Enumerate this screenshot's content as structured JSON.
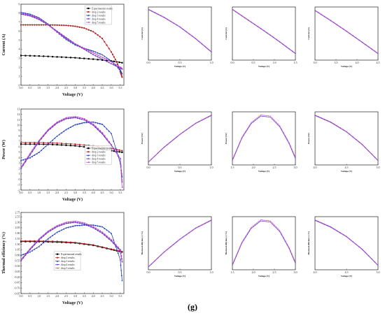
{
  "caption": "(g)",
  "series_styles": [
    {
      "color": "#000000",
      "marker": "square"
    },
    {
      "color": "#b22222",
      "marker": "circle"
    },
    {
      "color": "#1f3fc0",
      "marker": "triangle"
    },
    {
      "color": "#5a2fbf",
      "marker": "diamond"
    },
    {
      "color": "#c044c8",
      "marker": "triangle-left"
    }
  ],
  "chart_data": [
    {
      "type": "line",
      "xlabel": "Voltage (V)",
      "ylabel": "Current (A)",
      "xlim": [
        0,
        5.7
      ],
      "ylim": [
        0,
        9
      ],
      "xticks": [
        "0.0",
        "0.5",
        "1.0",
        "1.5",
        "2.0",
        "2.5",
        "3.0",
        "3.5",
        "4.0",
        "4.5",
        "5.0",
        "5.5"
      ],
      "yticks": [
        "0",
        "1",
        "2",
        "3",
        "4",
        "5",
        "6",
        "7",
        "8",
        "9"
      ],
      "legend": "top-right",
      "series": [
        {
          "name": "Experimental results",
          "x": [
            0,
            1,
            2,
            3,
            4,
            5,
            5.6
          ],
          "y": [
            3.3,
            3.25,
            3.15,
            3.05,
            2.9,
            2.7,
            2.5
          ]
        },
        {
          "name": "drop 2 results",
          "x": [
            0,
            0.5,
            1,
            1.5,
            2,
            2.5,
            3,
            3.5,
            4,
            4.5,
            5,
            5.3,
            5.5,
            5.6
          ],
          "y": [
            6.7,
            6.7,
            6.7,
            6.7,
            6.68,
            6.65,
            6.55,
            6.35,
            5.95,
            5.2,
            3.7,
            2.6,
            1.5,
            0.9
          ]
        },
        {
          "name": "drop 3 results",
          "x": [
            0,
            0.5,
            1,
            1.5,
            2,
            2.5,
            3,
            3.5,
            4,
            4.5,
            5,
            5.5,
            5.6
          ],
          "y": [
            8.1,
            7.9,
            7.5,
            6.8,
            5.9,
            5.1,
            4.5,
            4.1,
            3.8,
            3.4,
            2.7,
            1.7,
            1.3
          ]
        },
        {
          "name": "drop 4 results",
          "x": [
            0,
            0.5,
            1,
            1.5,
            2,
            2.5,
            3,
            3.5,
            4,
            4.5,
            5,
            5.5,
            5.6
          ],
          "y": [
            7.9,
            7.7,
            7.3,
            6.7,
            6.0,
            5.3,
            4.6,
            4.0,
            3.4,
            2.9,
            2.4,
            1.9,
            1.8
          ]
        },
        {
          "name": "drop 5 results",
          "x": [
            0,
            0.5,
            1,
            1.5,
            2,
            2.5,
            3,
            3.5,
            4,
            4.5,
            5,
            5.5,
            5.6
          ],
          "y": [
            8.0,
            7.8,
            7.4,
            6.7,
            5.9,
            5.2,
            4.6,
            4.1,
            3.6,
            3.1,
            2.6,
            2.0,
            1.8
          ]
        }
      ]
    },
    {
      "type": "line",
      "xlabel": "Voltage (V)",
      "ylabel": "Power (W)",
      "xlim": [
        0,
        5.7
      ],
      "ylim": [
        -2,
        13
      ],
      "xticks": [
        "0.0",
        "0.5",
        "1.0",
        "1.5",
        "2.0",
        "2.5",
        "3.0",
        "3.5",
        "4.0",
        "4.5",
        "5.0",
        "5.5"
      ],
      "yticks": [
        "-2",
        "-1",
        "0",
        "1",
        "2",
        "3",
        "4",
        "5",
        "6",
        "7",
        "8",
        "9",
        "10",
        "11",
        "12",
        "13"
      ],
      "legend": "bottom-right",
      "series": [
        {
          "name": "Experimental results",
          "x": [
            0,
            1,
            2,
            3,
            4,
            5,
            5.6
          ],
          "y": [
            6.5,
            6.5,
            6.4,
            6.2,
            5.8,
            5.3,
            5.0
          ]
        },
        {
          "name": "drop 2 results",
          "x": [
            0,
            1,
            2,
            3,
            4,
            5,
            5.6
          ],
          "y": [
            6.8,
            6.8,
            6.7,
            6.5,
            6.2,
            5.7,
            5.3
          ]
        },
        {
          "name": "drop 3 results",
          "x": [
            0,
            0.5,
            1,
            1.5,
            2,
            2.5,
            3,
            3.5,
            4,
            4.5,
            5,
            5.5,
            5.6
          ],
          "y": [
            3.5,
            4.0,
            5.0,
            6.5,
            8.0,
            9.2,
            10.1,
            10.5,
            10.6,
            10.2,
            8.5,
            3.0,
            0.5
          ]
        },
        {
          "name": "drop 4 results",
          "x": [
            0,
            0.5,
            1,
            1.5,
            2,
            2.5,
            3,
            3.5,
            4,
            4.5,
            5,
            5.5,
            5.6
          ],
          "y": [
            2.0,
            4.5,
            7.0,
            9.0,
            10.4,
            11.2,
            11.4,
            11.0,
            10.0,
            8.4,
            6.3,
            3.8,
            -0.5
          ]
        },
        {
          "name": "drop 5 results",
          "x": [
            0,
            0.5,
            1,
            1.5,
            2,
            2.5,
            3,
            3.5,
            4,
            4.5,
            5,
            5.5,
            5.6
          ],
          "y": [
            2.2,
            4.8,
            7.2,
            9.2,
            10.6,
            11.4,
            11.6,
            11.2,
            10.2,
            8.6,
            6.4,
            3.8,
            -1.5
          ]
        }
      ]
    },
    {
      "type": "line",
      "xlabel": "Voltage (V)",
      "ylabel": "Thermal efficiency (%)",
      "xlim": [
        0,
        5.7
      ],
      "ylim": [
        -0.95,
        2.75
      ],
      "xticks": [
        "0.0",
        "0.5",
        "1.0",
        "1.5",
        "2.0",
        "2.5",
        "3.0",
        "3.5",
        "4.0",
        "4.5",
        "5.0",
        "5.5"
      ],
      "yticks": [
        "-0.95",
        "-0.70",
        "-0.45",
        "-0.20",
        "0.05",
        "0.30",
        "0.55",
        "0.80",
        "1.05",
        "1.30",
        "1.55",
        "1.80",
        "2.05",
        "2.30",
        "2.55",
        "2.75"
      ],
      "legend": "bottom-left",
      "series": [
        {
          "name": "Experimental results",
          "x": [
            0,
            1,
            2,
            3,
            4,
            5,
            5.6
          ],
          "y": [
            1.42,
            1.42,
            1.4,
            1.36,
            1.25,
            1.06,
            0.95
          ]
        },
        {
          "name": "drop 2 results",
          "x": [
            0,
            1,
            2,
            3,
            4,
            5,
            5.6
          ],
          "y": [
            1.45,
            1.45,
            1.43,
            1.38,
            1.27,
            1.08,
            0.97
          ]
        },
        {
          "name": "drop 3 results",
          "x": [
            0,
            0.5,
            1,
            1.5,
            2,
            2.5,
            3,
            3.5,
            4,
            4.5,
            5,
            5.5,
            5.6
          ],
          "y": [
            0.8,
            0.95,
            1.2,
            1.55,
            1.85,
            2.05,
            2.15,
            2.18,
            2.18,
            2.1,
            1.8,
            0.6,
            -0.35
          ]
        },
        {
          "name": "drop 4 results",
          "x": [
            0,
            0.5,
            1,
            1.5,
            2,
            2.5,
            3,
            3.5,
            4,
            4.5,
            5,
            5.5,
            5.6
          ],
          "y": [
            0.55,
            1.05,
            1.5,
            1.85,
            2.1,
            2.25,
            2.3,
            2.22,
            2.05,
            1.8,
            1.45,
            1.0,
            0.5
          ]
        },
        {
          "name": "drop 5 results",
          "x": [
            0,
            0.5,
            1,
            1.5,
            2,
            2.5,
            3,
            3.5,
            4,
            4.5,
            5,
            5.5,
            5.6
          ],
          "y": [
            0.6,
            1.1,
            1.55,
            1.9,
            2.15,
            2.3,
            2.35,
            2.27,
            2.1,
            1.85,
            1.5,
            1.05,
            0.5
          ]
        }
      ]
    },
    {
      "type": "line",
      "xlabel": "Voltage (V)",
      "ylabel": "Current (A)",
      "xlim": [
        0,
        1
      ],
      "ylim": [
        0,
        1
      ],
      "xticks": [
        "0.0",
        "0.5",
        "1.0"
      ],
      "yticks": [],
      "series": [
        {
          "name": "",
          "x": [
            0,
            0.25,
            0.5,
            0.75,
            1
          ],
          "y": [
            0.95,
            0.8,
            0.62,
            0.4,
            0.15
          ]
        },
        {
          "name": "",
          "x": [
            0,
            0.25,
            0.5,
            0.75,
            1
          ],
          "y": [
            0.96,
            0.81,
            0.63,
            0.41,
            0.16
          ]
        }
      ]
    },
    {
      "type": "line",
      "xlabel": "Voltage (V)",
      "ylabel": "Current (A)",
      "xlim": [
        0,
        1
      ],
      "ylim": [
        0,
        1
      ],
      "xticks": [
        "0.0",
        "0.5",
        "1.0",
        "1.5"
      ],
      "yticks": [],
      "series": [
        {
          "name": "",
          "x": [
            0,
            0.25,
            0.5,
            0.75,
            1
          ],
          "y": [
            0.95,
            0.75,
            0.55,
            0.34,
            0.12
          ]
        },
        {
          "name": "",
          "x": [
            0,
            0.25,
            0.5,
            0.75,
            1
          ],
          "y": [
            0.96,
            0.76,
            0.56,
            0.35,
            0.13
          ]
        }
      ]
    },
    {
      "type": "line",
      "xlabel": "Voltage (V)",
      "ylabel": "Current (A)",
      "xlim": [
        0,
        1
      ],
      "ylim": [
        0,
        1
      ],
      "xticks": [
        "3.0",
        "3.5",
        "4.0",
        "4.5"
      ],
      "yticks": [],
      "series": [
        {
          "name": "",
          "x": [
            0,
            0.25,
            0.5,
            0.75,
            1
          ],
          "y": [
            0.93,
            0.74,
            0.54,
            0.33,
            0.12
          ]
        },
        {
          "name": "",
          "x": [
            0,
            0.25,
            0.5,
            0.75,
            1
          ],
          "y": [
            0.94,
            0.75,
            0.55,
            0.34,
            0.13
          ]
        }
      ]
    },
    {
      "type": "line",
      "xlabel": "Voltage (V)",
      "ylabel": "Power (W)",
      "xlim": [
        0,
        1
      ],
      "ylim": [
        0,
        1
      ],
      "xticks": [
        "0.0",
        "0.5",
        "1.0"
      ],
      "yticks": [],
      "series": [
        {
          "name": "",
          "x": [
            0,
            0.25,
            0.5,
            0.75,
            1
          ],
          "y": [
            0.05,
            0.33,
            0.57,
            0.78,
            0.93
          ]
        },
        {
          "name": "",
          "x": [
            0,
            0.25,
            0.5,
            0.75,
            1
          ],
          "y": [
            0.06,
            0.34,
            0.58,
            0.79,
            0.94
          ]
        }
      ]
    },
    {
      "type": "line",
      "xlabel": "Voltage (V)",
      "ylabel": "Power (W)",
      "xlim": [
        0,
        1
      ],
      "ylim": [
        0,
        1
      ],
      "xticks": [
        "1.5",
        "2.0",
        "2.5",
        "3.0"
      ],
      "yticks": [],
      "series": [
        {
          "name": "",
          "x": [
            0,
            0.15,
            0.3,
            0.45,
            0.6,
            0.75,
            0.9,
            1
          ],
          "y": [
            0.08,
            0.5,
            0.78,
            0.92,
            0.9,
            0.72,
            0.4,
            0.12
          ]
        },
        {
          "name": "",
          "x": [
            0,
            0.15,
            0.3,
            0.45,
            0.6,
            0.75,
            0.9,
            1
          ],
          "y": [
            0.1,
            0.52,
            0.8,
            0.94,
            0.92,
            0.74,
            0.42,
            0.14
          ]
        }
      ]
    },
    {
      "type": "line",
      "xlabel": "Voltage (V)",
      "ylabel": "Power (W)",
      "xlim": [
        0,
        1
      ],
      "ylim": [
        0,
        1
      ],
      "xticks": [
        "4.0",
        "4.5",
        "5.0"
      ],
      "yticks": [],
      "series": [
        {
          "name": "",
          "x": [
            0,
            0.25,
            0.5,
            0.75,
            1
          ],
          "y": [
            0.93,
            0.8,
            0.62,
            0.38,
            0.08
          ]
        },
        {
          "name": "",
          "x": [
            0,
            0.25,
            0.5,
            0.75,
            1
          ],
          "y": [
            0.94,
            0.81,
            0.63,
            0.39,
            0.09
          ]
        }
      ]
    },
    {
      "type": "line",
      "xlabel": "Voltage (V)",
      "ylabel": "Thermal efficiency (%)",
      "xlim": [
        0,
        1
      ],
      "ylim": [
        0,
        1
      ],
      "xticks": [
        "0.0",
        "0.5",
        "1.0"
      ],
      "yticks": [],
      "series": [
        {
          "name": "",
          "x": [
            0,
            0.25,
            0.5,
            0.75,
            1
          ],
          "y": [
            0.05,
            0.33,
            0.57,
            0.78,
            0.93
          ]
        },
        {
          "name": "",
          "x": [
            0,
            0.25,
            0.5,
            0.75,
            1
          ],
          "y": [
            0.06,
            0.34,
            0.58,
            0.79,
            0.94
          ]
        }
      ]
    },
    {
      "type": "line",
      "xlabel": "Voltage (V)",
      "ylabel": "Thermal efficiency (%)",
      "xlim": [
        0,
        1
      ],
      "ylim": [
        0,
        1
      ],
      "xticks": [
        "1.5",
        "2.0",
        "2.5",
        "3.0"
      ],
      "yticks": [],
      "series": [
        {
          "name": "",
          "x": [
            0,
            0.15,
            0.3,
            0.45,
            0.6,
            0.75,
            0.9,
            1
          ],
          "y": [
            0.08,
            0.5,
            0.78,
            0.92,
            0.9,
            0.72,
            0.4,
            0.12
          ]
        },
        {
          "name": "",
          "x": [
            0,
            0.15,
            0.3,
            0.45,
            0.6,
            0.75,
            0.9,
            1
          ],
          "y": [
            0.1,
            0.52,
            0.8,
            0.94,
            0.92,
            0.74,
            0.42,
            0.14
          ]
        }
      ]
    },
    {
      "type": "line",
      "xlabel": "Voltage (V)",
      "ylabel": "Thermal efficiency (%)",
      "xlim": [
        0,
        1
      ],
      "ylim": [
        0,
        1
      ],
      "xticks": [
        "4.0",
        "4.5",
        "5.0"
      ],
      "yticks": [],
      "series": [
        {
          "name": "",
          "x": [
            0,
            0.25,
            0.5,
            0.75,
            1
          ],
          "y": [
            0.93,
            0.8,
            0.62,
            0.38,
            0.08
          ]
        },
        {
          "name": "",
          "x": [
            0,
            0.25,
            0.5,
            0.75,
            1
          ],
          "y": [
            0.94,
            0.81,
            0.63,
            0.39,
            0.09
          ]
        }
      ]
    }
  ]
}
